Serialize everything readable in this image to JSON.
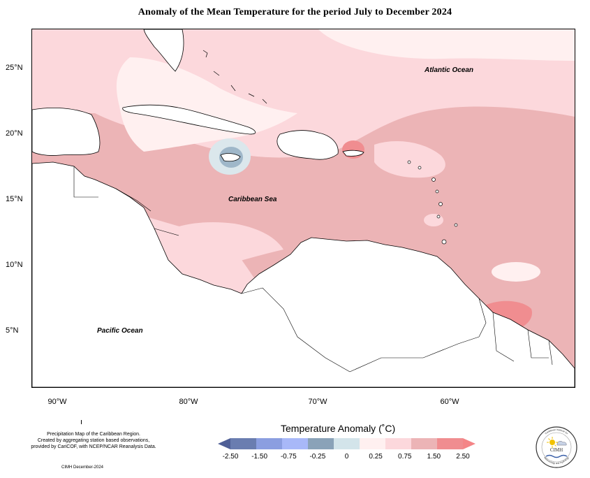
{
  "title": "Anomaly of the Mean Temperature for the period July to December 2024",
  "map": {
    "latitude_labels": [
      "25°N",
      "20°N",
      "15°N",
      "10°N",
      "5°N"
    ],
    "longitude_labels": [
      "90°W",
      "80°W",
      "70°W",
      "60°W"
    ],
    "ocean_labels": {
      "atlantic": "Atlantic Ocean",
      "caribbean": "Caribbean Sea",
      "pacific": "Pacific Ocean"
    },
    "colors": {
      "land_background": "#ffffff",
      "coastline": "#000000",
      "anomaly_0_to_0_25": "#fff0f0",
      "anomaly_0_25_to_0_75": "#fcd8dc",
      "anomaly_0_75_to_1_50": "#ecb4b6",
      "anomaly_1_50_to_2_50": "#f08d90",
      "anomaly_neg_0_25_to_0": "#dbe7ec",
      "anomaly_neg_0_75_to_neg_0_25": "#87a0b6"
    }
  },
  "credits": {
    "line1": "Precipitation Map of the Caribbean Region.",
    "line2": "Created by aggregating station based observations,",
    "line3": "provided by CariCOF, with NCEP/NCAR Reanalysis Data.",
    "date": "CIMH December-2024"
  },
  "legend": {
    "title": "Temperature Anomaly (˚C)",
    "ticks": [
      "-2.50",
      "-1.50",
      "-0.75",
      "-0.25",
      "0",
      "0.25",
      "0.75",
      "1.50",
      "2.50"
    ],
    "bin_colors": [
      "#6a7db0",
      "#8b9ee0",
      "#a8b8f8",
      "#8aa2b8",
      "#d3e4ea",
      "#fff0f0",
      "#fcd8dc",
      "#ecb4b6",
      "#f08d90"
    ],
    "end_colors": {
      "low": "#4f5f96",
      "high": "#f48587"
    }
  },
  "logo": {
    "acronym": "CIMH",
    "top_text": "Caribbean Institute for",
    "bottom_text": "Meteorology and Hydrology"
  }
}
